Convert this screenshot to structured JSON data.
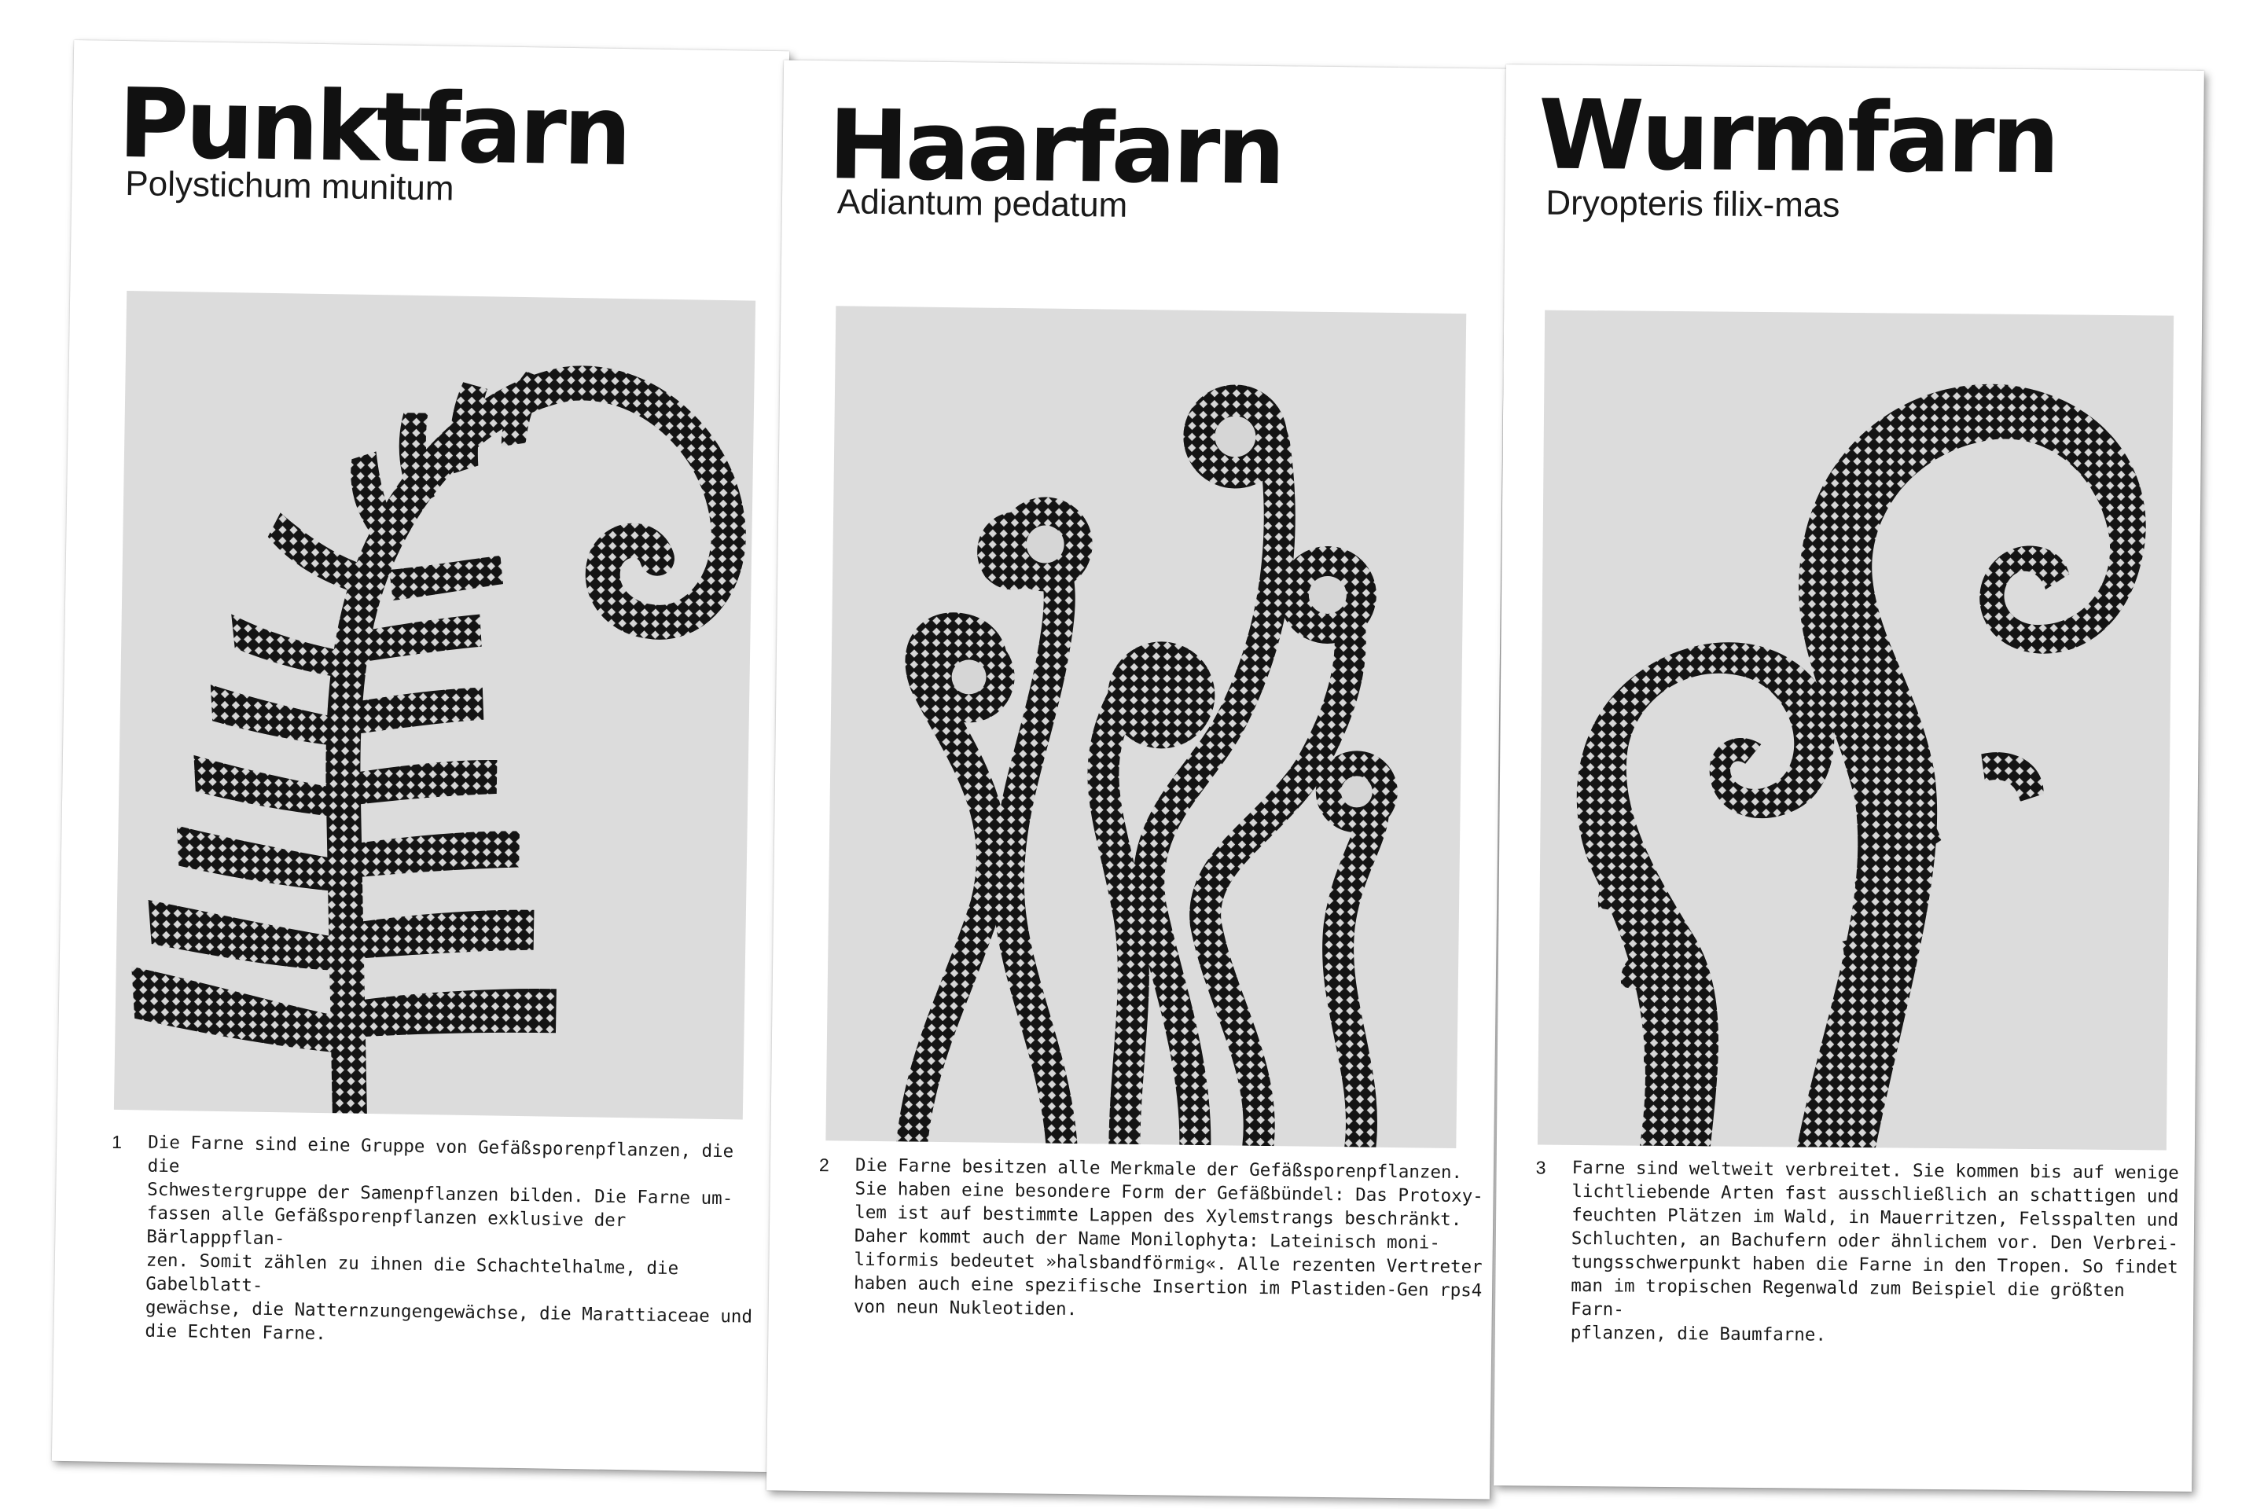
{
  "cards": [
    {
      "title": "Punktfarn",
      "latin": "Polystichum munitum",
      "image": "fern-frond-halftone",
      "number": "1",
      "caption": "Die Farne sind eine Gruppe von Gefäßsporenpflanzen, die die\nSchwestergruppe der Samenpflanzen bilden. Die Farne um-\nfassen alle Gefäßsporenpflanzen exklusive der Bärlapppflan-\nzen. Somit zählen zu ihnen die Schachtelhalme, die Gabelblatt-\ngewächse, die Natternzungengewächse, die Marattiaceae und\ndie Echten Farne."
    },
    {
      "title": "Haarfarn",
      "latin": "Adiantum pedatum",
      "image": "fiddleheads-halftone",
      "number": "2",
      "caption": "Die Farne besitzen alle Merkmale der Gefäßsporenpflanzen.\nSie haben eine besondere Form der Gefäßbündel: Das Protoxy-\nlem ist auf bestimmte Lappen des Xylemstrangs beschränkt.\nDaher kommt auch der Name Monilophyta: Lateinisch moni-\nliformis bedeutet »halsbandförmig«. Alle rezenten Vertreter\nhaben auch eine spezifische Insertion im Plastiden-Gen rps4\nvon neun Nukleotiden."
    },
    {
      "title": "Wurmfarn",
      "latin": "Dryopteris filix-mas",
      "image": "unfurling-fronds-halftone",
      "number": "3",
      "caption": "Farne sind weltweit verbreitet. Sie kommen bis auf wenige\nlichtliebende Arten fast ausschließlich an schattigen und\nfeuchten Plätzen im Wald, in Mauerritzen, Felsspalten und\nSchluchten, an Bachufern oder ähnlichem vor. Den Verbrei-\ntungsschwerpunkt haben die Farne in den Tropen. So findet\nman im tropischen Regenwald zum Beispiel die größten Farn-\npflanzen, die Baumfarne."
    }
  ]
}
